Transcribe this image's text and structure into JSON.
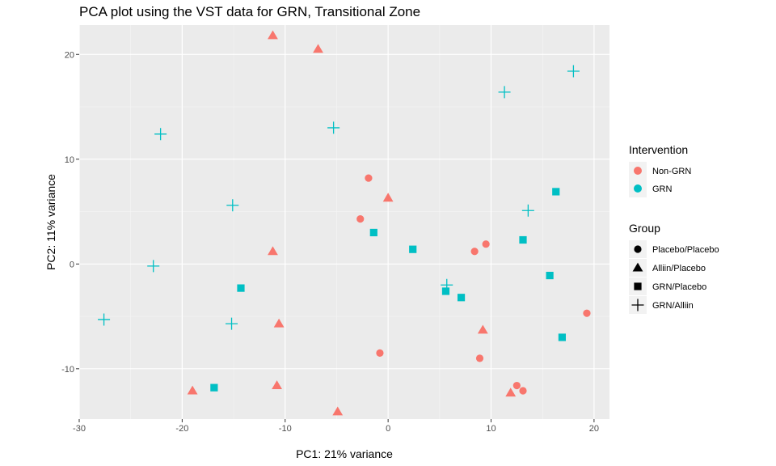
{
  "chart_data": {
    "type": "scatter",
    "title": "PCA plot using the VST data for GRN, Transitional Zone",
    "xlabel": "PC1: 21% variance",
    "ylabel": "PC2: 11% variance",
    "xlim": [
      -30,
      21.5
    ],
    "ylim": [
      -14.8,
      22.8
    ],
    "x_major_ticks": [
      -30,
      -20,
      -10,
      0,
      10,
      20
    ],
    "x_minor_ticks": [
      -25,
      -15,
      -5,
      5,
      15
    ],
    "y_major_ticks": [
      -10,
      0,
      10,
      20
    ],
    "y_minor_ticks": [
      -5,
      5,
      15
    ],
    "x_tick_labels": [
      "-30",
      "-20",
      "-10",
      "0",
      "10",
      "20"
    ],
    "y_tick_labels": [
      "-10",
      "0",
      "10",
      "20"
    ],
    "colors": {
      "Non-GRN": "#F8766D",
      "GRN": "#00BFC4"
    },
    "legend": {
      "color_title": "Intervention",
      "color_entries": [
        "Non-GRN",
        "GRN"
      ],
      "shape_title": "Group",
      "shape_entries": [
        {
          "label": "Placebo/Placebo",
          "shape": "circle"
        },
        {
          "label": "Alliin/Placebo",
          "shape": "triangle"
        },
        {
          "label": "GRN/Placebo",
          "shape": "square"
        },
        {
          "label": "GRN/Alliin",
          "shape": "plus"
        }
      ]
    },
    "points": [
      {
        "x": -11.2,
        "y": 21.8,
        "intervention": "Non-GRN",
        "group": "Alliin/Placebo"
      },
      {
        "x": -6.8,
        "y": 20.5,
        "intervention": "Non-GRN",
        "group": "Alliin/Placebo"
      },
      {
        "x": 0.0,
        "y": 6.3,
        "intervention": "Non-GRN",
        "group": "Alliin/Placebo"
      },
      {
        "x": -11.2,
        "y": 1.2,
        "intervention": "Non-GRN",
        "group": "Alliin/Placebo"
      },
      {
        "x": -10.6,
        "y": -5.7,
        "intervention": "Non-GRN",
        "group": "Alliin/Placebo"
      },
      {
        "x": 9.2,
        "y": -6.3,
        "intervention": "Non-GRN",
        "group": "Alliin/Placebo"
      },
      {
        "x": -10.8,
        "y": -11.6,
        "intervention": "Non-GRN",
        "group": "Alliin/Placebo"
      },
      {
        "x": -19.0,
        "y": -12.1,
        "intervention": "Non-GRN",
        "group": "Alliin/Placebo"
      },
      {
        "x": 11.9,
        "y": -12.3,
        "intervention": "Non-GRN",
        "group": "Alliin/Placebo"
      },
      {
        "x": -4.9,
        "y": -14.1,
        "intervention": "Non-GRN",
        "group": "Alliin/Placebo"
      },
      {
        "x": -1.9,
        "y": 8.2,
        "intervention": "Non-GRN",
        "group": "Placebo/Placebo"
      },
      {
        "x": -2.7,
        "y": 4.3,
        "intervention": "Non-GRN",
        "group": "Placebo/Placebo"
      },
      {
        "x": 9.5,
        "y": 1.9,
        "intervention": "Non-GRN",
        "group": "Placebo/Placebo"
      },
      {
        "x": 8.4,
        "y": 1.2,
        "intervention": "Non-GRN",
        "group": "Placebo/Placebo"
      },
      {
        "x": 19.3,
        "y": -4.7,
        "intervention": "Non-GRN",
        "group": "Placebo/Placebo"
      },
      {
        "x": -0.8,
        "y": -8.5,
        "intervention": "Non-GRN",
        "group": "Placebo/Placebo"
      },
      {
        "x": 8.9,
        "y": -9.0,
        "intervention": "Non-GRN",
        "group": "Placebo/Placebo"
      },
      {
        "x": 12.5,
        "y": -11.6,
        "intervention": "Non-GRN",
        "group": "Placebo/Placebo"
      },
      {
        "x": 13.1,
        "y": -12.1,
        "intervention": "Non-GRN",
        "group": "Placebo/Placebo"
      },
      {
        "x": 16.3,
        "y": 6.9,
        "intervention": "GRN",
        "group": "GRN/Placebo"
      },
      {
        "x": -1.4,
        "y": 3.0,
        "intervention": "GRN",
        "group": "GRN/Placebo"
      },
      {
        "x": 13.1,
        "y": 2.3,
        "intervention": "GRN",
        "group": "GRN/Placebo"
      },
      {
        "x": 2.4,
        "y": 1.4,
        "intervention": "GRN",
        "group": "GRN/Placebo"
      },
      {
        "x": 15.7,
        "y": -1.1,
        "intervention": "GRN",
        "group": "GRN/Placebo"
      },
      {
        "x": -14.3,
        "y": -2.3,
        "intervention": "GRN",
        "group": "GRN/Placebo"
      },
      {
        "x": 5.6,
        "y": -2.6,
        "intervention": "GRN",
        "group": "GRN/Placebo"
      },
      {
        "x": 7.1,
        "y": -3.2,
        "intervention": "GRN",
        "group": "GRN/Placebo"
      },
      {
        "x": 16.9,
        "y": -7.0,
        "intervention": "GRN",
        "group": "GRN/Placebo"
      },
      {
        "x": -16.9,
        "y": -11.8,
        "intervention": "GRN",
        "group": "GRN/Placebo"
      },
      {
        "x": 18.0,
        "y": 18.4,
        "intervention": "GRN",
        "group": "GRN/Alliin"
      },
      {
        "x": 11.3,
        "y": 16.4,
        "intervention": "GRN",
        "group": "GRN/Alliin"
      },
      {
        "x": -5.3,
        "y": 13.0,
        "intervention": "GRN",
        "group": "GRN/Alliin"
      },
      {
        "x": -22.1,
        "y": 12.4,
        "intervention": "GRN",
        "group": "GRN/Alliin"
      },
      {
        "x": -15.1,
        "y": 5.6,
        "intervention": "GRN",
        "group": "GRN/Alliin"
      },
      {
        "x": 13.6,
        "y": 5.1,
        "intervention": "GRN",
        "group": "GRN/Alliin"
      },
      {
        "x": -22.8,
        "y": -0.2,
        "intervention": "GRN",
        "group": "GRN/Alliin"
      },
      {
        "x": 5.7,
        "y": -2.0,
        "intervention": "GRN",
        "group": "GRN/Alliin"
      },
      {
        "x": -27.6,
        "y": -5.3,
        "intervention": "GRN",
        "group": "GRN/Alliin"
      },
      {
        "x": -15.2,
        "y": -5.7,
        "intervention": "GRN",
        "group": "GRN/Alliin"
      }
    ]
  }
}
